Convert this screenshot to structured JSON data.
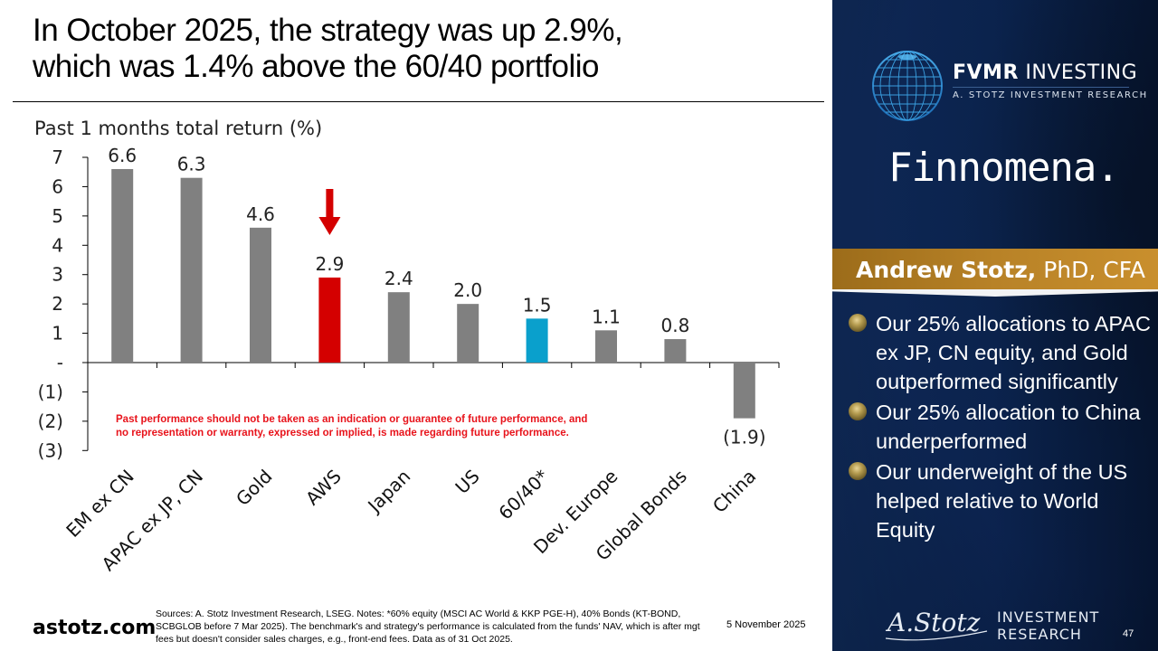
{
  "slide": {
    "title_line1": "In October 2025, the strategy was up 2.9%,",
    "title_line2": "which was 1.4% above the 60/40 portfolio",
    "footer": {
      "site": "astotz.com",
      "notes": "Sources: A. Stotz Investment Research, LSEG. Notes: *60% equity (MSCI AC World & KKP PGE-H), 40% Bonds (KT-BOND, SCBGLOB before 7 Mar 2025). The benchmark's and strategy's performance is calculated from the funds' NAV, which is after mgt fees but doesn't consider sales charges, e.g., front-end fees. Data as of 31 Oct 2025.",
      "date": "5 November 2025",
      "page_number": "47"
    }
  },
  "sidebar": {
    "fvmr_name_bold": "FVMR",
    "fvmr_name_rest": " INVESTING",
    "fvmr_subtitle": "A. STOTZ INVESTMENT RESEARCH",
    "finnomena": "Finnomena.",
    "presenter_name": "Andrew Stotz,",
    "presenter_credentials": " PhD, CFA",
    "bullets": [
      "Our 25% allocations to APAC ex JP, CN equity, and Gold outperformed significantly",
      "Our 25% allocation to China underperformed",
      "Our underweight of the US helped relative to World Equity"
    ],
    "brand_line1": "INVESTMENT",
    "brand_line2": "RESEARCH",
    "signature": "A.Stotz"
  },
  "chart_data": {
    "type": "bar",
    "title": "Past 1 months total return (%)",
    "xlabel": "",
    "ylabel": "",
    "categories": [
      "EM ex CN",
      "APAC ex JP, CN",
      "Gold",
      "AWS",
      "Japan",
      "US",
      "60/40*",
      "Dev. Europe",
      "Global Bonds",
      "China"
    ],
    "values": [
      6.6,
      6.3,
      4.6,
      2.9,
      2.4,
      2.0,
      1.5,
      1.1,
      0.8,
      -1.9
    ],
    "value_labels": [
      "6.6",
      "6.3",
      "4.6",
      "2.9",
      "2.4",
      "2.0",
      "1.5",
      "1.1",
      "0.8",
      "(1.9)"
    ],
    "bar_colors": [
      "#808080",
      "#808080",
      "#808080",
      "#d40000",
      "#808080",
      "#808080",
      "#0aa0cc",
      "#808080",
      "#808080",
      "#808080"
    ],
    "highlight": {
      "AWS": "#d40000",
      "60/40*": "#0aa0cc"
    },
    "ylim": [
      -3,
      7
    ],
    "yticks": [
      7,
      6,
      5,
      4,
      3,
      2,
      1,
      0,
      -1,
      -2,
      -3
    ],
    "ytick_labels": [
      "7",
      "6",
      "5",
      "4",
      "3",
      "2",
      "1",
      "-",
      "(1)",
      "(2)",
      "(3)"
    ],
    "grid": false,
    "legend": "none",
    "annotations": {
      "arrow_target": "AWS",
      "arrow_color": "#d40000",
      "disclaimer_line1": "Past performance should not be taken as an indication or guarantee of future performance, and",
      "disclaimer_line2": "no representation or warranty, expressed or implied, is made regarding future performance.",
      "disclaimer_color": "#e8131b"
    }
  }
}
